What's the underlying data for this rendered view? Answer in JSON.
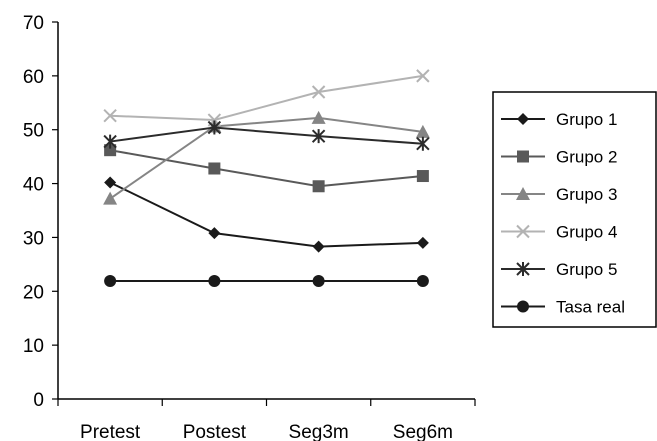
{
  "chart_data": {
    "type": "line",
    "title": "",
    "xlabel": "",
    "ylabel": "",
    "categories": [
      "Pretest",
      "Postest",
      "Seg3m",
      "Seg6m"
    ],
    "ylim": [
      0,
      70
    ],
    "yticks": [
      0,
      10,
      20,
      30,
      40,
      50,
      60,
      70
    ],
    "grid": false,
    "legend_position": "right",
    "series": [
      {
        "name": "Grupo 1",
        "values": [
          40.2,
          30.8,
          28.3,
          29.0
        ],
        "marker": "diamond",
        "color": "#1a1a1a"
      },
      {
        "name": "Grupo 2",
        "values": [
          46.2,
          42.8,
          39.5,
          41.4
        ],
        "marker": "square",
        "color": "#595959"
      },
      {
        "name": "Grupo 3",
        "values": [
          37.2,
          50.6,
          52.2,
          49.6
        ],
        "marker": "triangle",
        "color": "#858585"
      },
      {
        "name": "Grupo 4",
        "values": [
          52.6,
          51.8,
          57.0,
          60.0
        ],
        "marker": "x",
        "color": "#b3b3b3"
      },
      {
        "name": "Grupo 5",
        "values": [
          47.8,
          50.4,
          48.8,
          47.4
        ],
        "marker": "star",
        "color": "#2b2b2b"
      },
      {
        "name": "Tasa real",
        "values": [
          21.9,
          21.9,
          21.9,
          21.9
        ],
        "marker": "circle",
        "color": "#1a1a1a"
      }
    ]
  }
}
